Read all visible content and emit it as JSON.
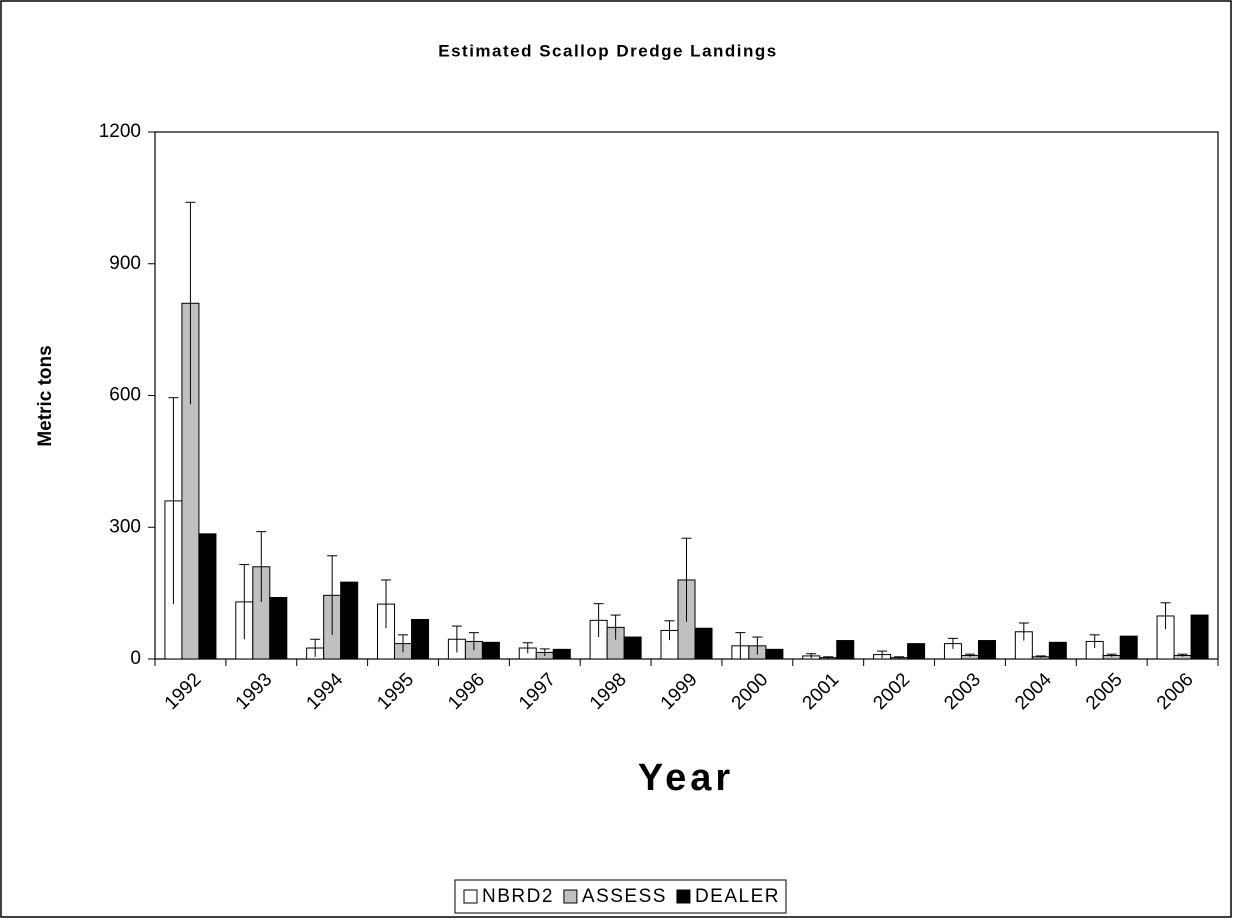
{
  "chart_data": {
    "type": "bar",
    "title": "Estimated Scallop Dredge Landings",
    "x_label": "Year",
    "y_label": "Metric tons",
    "categories": [
      "1992",
      "1993",
      "1994",
      "1995",
      "1996",
      "1997",
      "1998",
      "1999",
      "2000",
      "2001",
      "2002",
      "2003",
      "2004",
      "2005",
      "2006"
    ],
    "series": [
      {
        "name": "NBRD2",
        "color": "#ffffff",
        "values": [
          360,
          130,
          25,
          125,
          45,
          25,
          88,
          65,
          30,
          7,
          10,
          35,
          62,
          40,
          98
        ],
        "errors": [
          235,
          85,
          20,
          55,
          30,
          12,
          38,
          22,
          30,
          5,
          8,
          12,
          20,
          15,
          30
        ]
      },
      {
        "name": "ASSESS",
        "color": "#c0c0c0",
        "values": [
          810,
          210,
          145,
          35,
          40,
          15,
          72,
          180,
          30,
          3,
          3,
          8,
          5,
          8,
          8
        ],
        "errors": [
          230,
          80,
          90,
          20,
          20,
          8,
          28,
          95,
          20,
          2,
          2,
          3,
          2,
          3,
          3
        ]
      },
      {
        "name": "DEALER",
        "color": "#000000",
        "values": [
          285,
          140,
          175,
          90,
          38,
          22,
          50,
          70,
          22,
          42,
          35,
          42,
          38,
          52,
          100
        ]
      }
    ],
    "ylim": [
      0,
      1200
    ],
    "yticks": [
      0,
      300,
      600,
      900,
      1200
    ],
    "grid": false,
    "legend": "bottom"
  }
}
